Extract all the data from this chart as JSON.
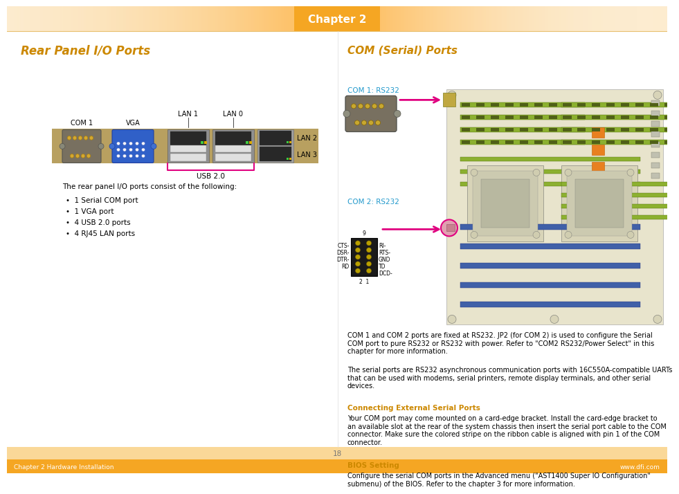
{
  "title_header": "Chapter 2",
  "left_title": "Rear Panel I/O Ports",
  "left_title_color": "#CC8800",
  "right_title": "COM (Serial) Ports",
  "right_title_color": "#CC8800",
  "footer_text_left": "Chapter 2 Hardware Installation",
  "footer_text_right": "www.dfi.com",
  "page_number": "18",
  "orange_color": "#F5A623",
  "dark_orange": "#CC8800",
  "pink_color": "#E0007F",
  "cyan_com": "#2299CC",
  "body_bg": "#FFFFFF",
  "description_text": "The rear panel I/O ports consist of the following:",
  "bullet_text": [
    "1 Serial COM port",
    "1 VGA port",
    "4 USB 2.0 ports",
    "4 RJ45 LAN ports"
  ],
  "com_section_para1": "COM 1 and COM 2 ports are fixed at RS232. JP2 (for COM 2) is used to configure the Serial\nCOM port to pure RS232 or RS232 with power. Refer to \"COM2 RS232/Power Select\" in this\nchapter for more information.",
  "com_section_para2": "The serial ports are RS232 asynchronous communication ports with 16C550A-compatible UARTs\nthat can be used with modems, serial printers, remote display terminals, and other serial\ndevices.",
  "connecting_title": "Connecting External Serial Ports",
  "connecting_text": "Your COM port may come mounted on a card-edge bracket. Install the card-edge bracket to\nan available slot at the rear of the system chassis then insert the serial port cable to the COM\nconnector. Make sure the colored stripe on the ribbon cable is aligned with pin 1 of the COM\nconnector.",
  "bios_title": "BIOS Setting",
  "bios_text": "Configure the serial COM ports in the Advanced menu (\"AST1400 Super IO Configuration\"\nsubmenu) of the BIOS. Refer to the chapter 3 for more information.",
  "com1_label": "COM 1: RS232",
  "com2_label": "COM 2: RS232",
  "pin_labels_left": [
    "CTS-",
    "DSR-",
    "DTR-",
    "RD"
  ],
  "pin_labels_right": [
    "RI-",
    "RTS-",
    "GND",
    "TD",
    "DCD-"
  ]
}
